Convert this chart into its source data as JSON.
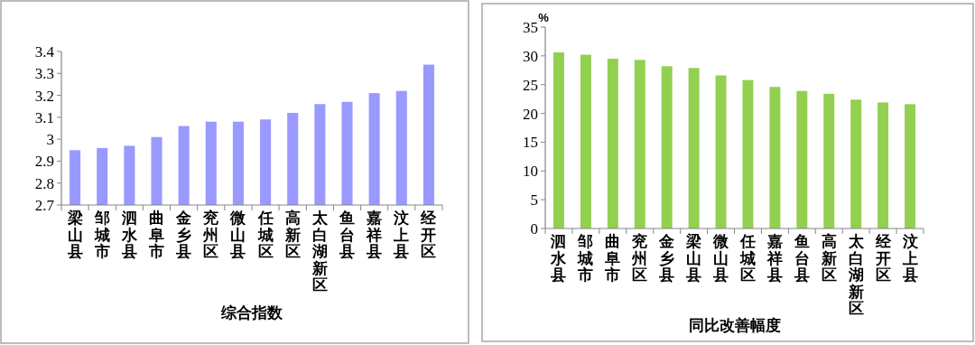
{
  "chart_data": [
    {
      "type": "bar",
      "xlabel": "综合指数",
      "categories": [
        "梁山县",
        "邹城市",
        "泗水县",
        "曲阜市",
        "金乡县",
        "兖州区",
        "微山县",
        "任城区",
        "高新区",
        "太白湖新区",
        "鱼台县",
        "嘉祥县",
        "汶上县",
        "经开区"
      ],
      "values": [
        2.95,
        2.96,
        2.97,
        3.01,
        3.06,
        3.08,
        3.08,
        3.09,
        3.12,
        3.16,
        3.17,
        3.21,
        3.22,
        3.34
      ],
      "color": "#9999ff",
      "ylim": [
        2.7,
        3.4
      ],
      "yticks": [
        2.7,
        2.8,
        2.9,
        3,
        3.1,
        3.2,
        3.3,
        3.4
      ]
    },
    {
      "type": "bar",
      "xlabel": "同比改善幅度",
      "ylabel": "%",
      "categories": [
        "泗水县",
        "邹城市",
        "曲阜市",
        "兖州区",
        "金乡县",
        "梁山县",
        "微山县",
        "任城区",
        "嘉祥县",
        "鱼台县",
        "高新区",
        "太白湖新区",
        "经开区",
        "汶上县"
      ],
      "values": [
        30.6,
        30.2,
        29.5,
        29.3,
        28.2,
        27.9,
        26.6,
        25.8,
        24.6,
        23.9,
        23.4,
        22.4,
        21.9,
        21.6
      ],
      "color": "#92d050",
      "ylim": [
        0,
        35
      ],
      "yticks": [
        0,
        5,
        10,
        15,
        20,
        25,
        30,
        35
      ]
    }
  ]
}
